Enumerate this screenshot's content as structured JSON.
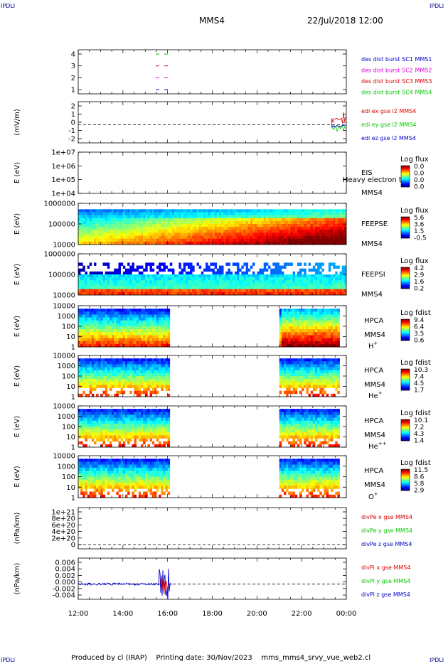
{
  "corner_label": "IPDLI",
  "header": {
    "spacecraft": "MMS4",
    "datetime": "22/Jul/2018 12:00"
  },
  "footer": {
    "text": "Produced by cl (IRAP)    Printing date: 30/Nov/2023    mms_mms4_srvy_vue_web2.cl"
  },
  "colors": {
    "red": "#dd0000",
    "green": "#00c800",
    "blue": "#0000cc",
    "magenta": "#dd00dd"
  },
  "chart_data": {
    "type": "multi-panel time series / spectrogram",
    "x_axis": {
      "range": [
        "12:00",
        "00:00"
      ],
      "ticks": [
        "12:00",
        "14:00",
        "16:00",
        "18:00",
        "20:00",
        "22:00",
        "00:00"
      ]
    },
    "panels": [
      {
        "id": "burst",
        "type": "line",
        "y_ticks": [
          "4",
          "3",
          "2",
          "1"
        ],
        "legend": [
          "des dist burst SC1 MMS1",
          "des dist burst SC2 MMS2",
          "des dist burst SC3 MMS3",
          "des dist burst SC4 MMS4"
        ]
      },
      {
        "id": "edi",
        "type": "line",
        "ylabel": "(mV/m)",
        "y_ticks": [
          "2",
          "1",
          "0",
          "-1",
          "-2"
        ],
        "legend": [
          "edi ex gse l2 MMS4",
          "edi ey gse l2 MMS4",
          "edi ez gse l2 MMS4"
        ]
      },
      {
        "id": "eis",
        "type": "heatmap",
        "ylabel": "E (eV)",
        "y_ticks": [
          "1e+07",
          "1e+06",
          "1e+05",
          "1e+04"
        ],
        "right_labels": [
          "EIS",
          "MMS4"
        ],
        "overlay_text": "Heavy electron to",
        "colorbar": {
          "title": "Log flux",
          "ticks": [
            "0.0",
            "0.0",
            "0.0",
            "0.0"
          ]
        }
      },
      {
        "id": "feepse",
        "type": "heatmap",
        "ylabel": "E (eV)",
        "y_ticks": [
          "1000000",
          "100000",
          "10000"
        ],
        "right_labels": [
          "FEEPSE",
          "MMS4"
        ],
        "colorbar": {
          "title": "Log flux",
          "ticks": [
            "5.6",
            "3.6",
            "1.5",
            "-0.5"
          ]
        }
      },
      {
        "id": "feepsi",
        "type": "heatmap",
        "ylabel": "E (eV)",
        "y_ticks": [
          "1000000",
          "100000",
          "10000"
        ],
        "right_labels": [
          "FEEPSI",
          "MMS4"
        ],
        "colorbar": {
          "title": "Log flux",
          "ticks": [
            "4.2",
            "2.9",
            "1.6",
            "0.2"
          ]
        }
      },
      {
        "id": "hpca_h",
        "type": "heatmap",
        "ylabel": "E (eV)",
        "y_ticks": [
          "10000",
          "1000",
          "100",
          "10",
          "1"
        ],
        "right_labels": [
          "HPCA",
          "MMS4"
        ],
        "species": "H",
        "species_sup": "+",
        "colorbar": {
          "title": "Log fdist",
          "ticks": [
            "9.4",
            "6.4",
            "3.5",
            "0.6"
          ]
        }
      },
      {
        "id": "hpca_he1",
        "type": "heatmap",
        "ylabel": "E (eV)",
        "y_ticks": [
          "10000",
          "1000",
          "100",
          "10",
          "1"
        ],
        "right_labels": [
          "HPCA",
          "MMS4"
        ],
        "species": "He",
        "species_sup": "+",
        "colorbar": {
          "title": "Log fdist",
          "ticks": [
            "10.3",
            "7.4",
            "4.5",
            "1.7"
          ]
        }
      },
      {
        "id": "hpca_he2",
        "type": "heatmap",
        "ylabel": "E (eV)",
        "y_ticks": [
          "10000",
          "1000",
          "100",
          "10",
          "1"
        ],
        "right_labels": [
          "HPCA",
          "MMS4"
        ],
        "species": "He",
        "species_sup": "++",
        "colorbar": {
          "title": "Log fdist",
          "ticks": [
            "10.1",
            "7.2",
            "4.3",
            "1.4"
          ]
        }
      },
      {
        "id": "hpca_o",
        "type": "heatmap",
        "ylabel": "E (eV)",
        "y_ticks": [
          "10000",
          "1000",
          "100",
          "10",
          "1"
        ],
        "right_labels": [
          "HPCA",
          "MMS4"
        ],
        "species": "O",
        "species_sup": "+",
        "colorbar": {
          "title": "Log fdist",
          "ticks": [
            "11.5",
            "8.6",
            "5.8",
            "2.9"
          ]
        }
      },
      {
        "id": "divpe",
        "type": "line",
        "ylabel": "(nPa/km)",
        "y_ticks": [
          "1e+21",
          "8e+20",
          "6e+20",
          "4e+20",
          "2e+20",
          "0"
        ],
        "legend": [
          "divPe x gse MMS4",
          "divPe y gse MMS4",
          "divPe z gse MMS4"
        ]
      },
      {
        "id": "divpi",
        "type": "line",
        "ylabel": "(nPa/km)",
        "y_ticks": [
          "0.006",
          "0.004",
          "0.002",
          "0.000",
          "-0.002",
          "-0.004"
        ],
        "legend": [
          "divPi x gse MMS4",
          "divPi y gse MMS4",
          "divPi z gse MMS4"
        ]
      }
    ]
  }
}
